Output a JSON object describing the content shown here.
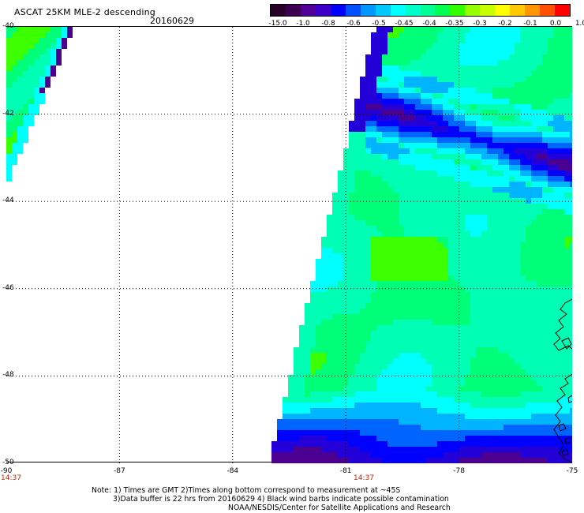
{
  "header": {
    "title": "ASCAT 25KM MLE-2 descending",
    "date": "20160629"
  },
  "colorbar": {
    "colors": [
      "#280028",
      "#3c0050",
      "#500096",
      "#3c00c8",
      "#0000ff",
      "#0050ff",
      "#0096ff",
      "#00c8ff",
      "#00ffff",
      "#00ffc8",
      "#00ff96",
      "#00ff50",
      "#32ff00",
      "#96ff00",
      "#c8ff00",
      "#ffff00",
      "#ffc800",
      "#ff9600",
      "#ff5000",
      "#ff0000"
    ],
    "labels": [
      "-15.0",
      "-1.0",
      "-0.8",
      "-0.6",
      "-0.5",
      "-0.45",
      "-0.4",
      "-0.35",
      "-0.3",
      "-0.2",
      "-0.1",
      "0.0",
      "1.0"
    ]
  },
  "map": {
    "lon_labels": [
      "-90",
      "-87",
      "-84",
      "-81",
      "-78",
      "-75"
    ],
    "lat_labels": [
      "-40",
      "-42",
      "-44",
      "-46",
      "-48",
      "-50"
    ],
    "lon_range": [
      -90,
      -75
    ],
    "lat_range": [
      -40,
      -50
    ],
    "grid": "dotted",
    "coastline_color": "#000000",
    "times": [
      "14:37",
      "14:37"
    ]
  },
  "footer": {
    "line1": "Note: 1) Times are GMT 2)Times along bottom correspond to measurement at ~45S",
    "line2": "3)Data buffer is 22 hrs from 20160629 4) Black wind barbs indicate possible contamination",
    "line3": "NOAA/NESDIS/Center for Satellite Applications and Research"
  }
}
